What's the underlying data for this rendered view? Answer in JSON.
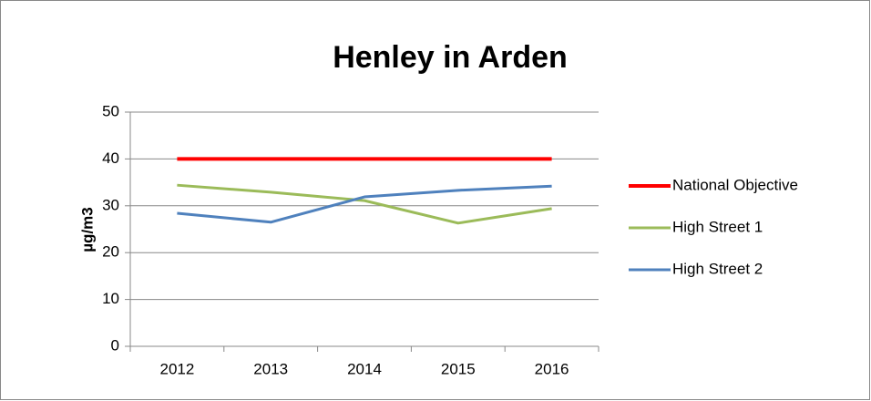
{
  "chart_data": {
    "type": "line",
    "title": "Henley in Arden",
    "y_label": "µg/m3",
    "categories": [
      "2012",
      "2013",
      "2014",
      "2015",
      "2016"
    ],
    "series": [
      {
        "name": "National Objective",
        "color": "#ff0000",
        "values": [
          40,
          40,
          40,
          40,
          40
        ]
      },
      {
        "name": "High Street 1",
        "color": "#9bbb59",
        "values": [
          34.4,
          32.9,
          31.1,
          26.3,
          29.4
        ]
      },
      {
        "name": "High Street 2",
        "color": "#4f81bd",
        "values": [
          28.4,
          26.5,
          31.9,
          33.3,
          34.2
        ]
      }
    ],
    "ylim": [
      0,
      50
    ],
    "yticks": [
      0,
      10,
      20,
      30,
      40,
      50
    ],
    "grid": true,
    "legend": "right"
  }
}
